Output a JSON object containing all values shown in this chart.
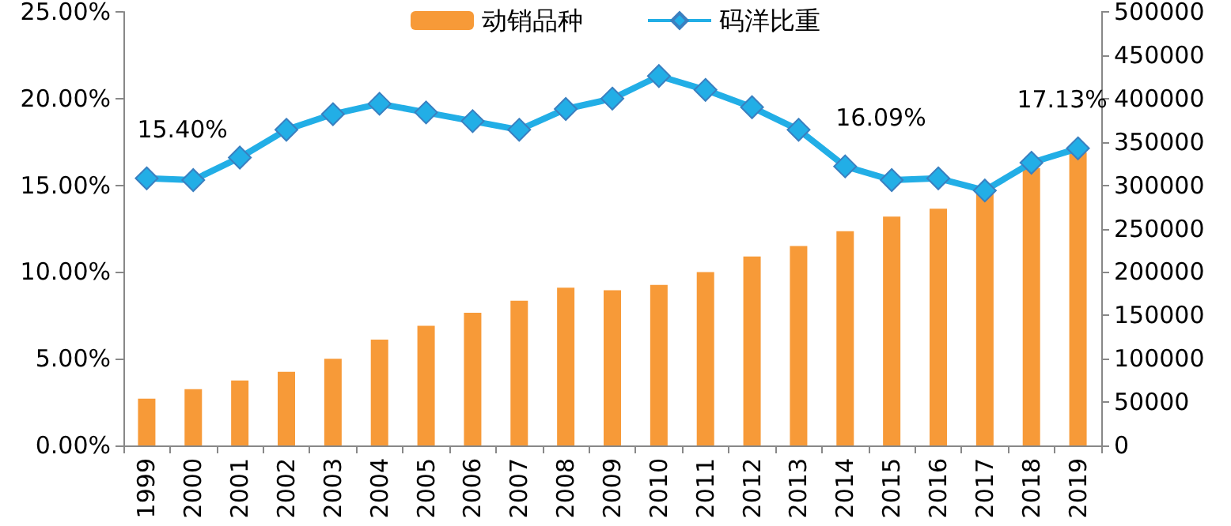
{
  "chart_data": {
    "type": "bar",
    "categories": [
      "1999",
      "2000",
      "2001",
      "2002",
      "2003",
      "2004",
      "2005",
      "2006",
      "2007",
      "2008",
      "2009",
      "2010",
      "2011",
      "2012",
      "2013",
      "2014",
      "2015",
      "2016",
      "2017",
      "2018",
      "2019"
    ],
    "series": [
      {
        "name": "动销品种",
        "axis": "y2",
        "color": "#f79a38",
        "values": [
          54000,
          65000,
          75000,
          85000,
          100000,
          122000,
          138000,
          153000,
          167000,
          182000,
          179000,
          185000,
          200000,
          218000,
          230000,
          247000,
          264000,
          273000,
          290000,
          320000,
          338000
        ]
      },
      {
        "name": "码洋比重",
        "type": "line",
        "axis": "y",
        "color": "#22aee6",
        "marker": "diamond",
        "values": [
          15.4,
          15.3,
          16.6,
          18.2,
          19.1,
          19.7,
          19.2,
          18.7,
          18.2,
          19.4,
          20.0,
          21.3,
          20.5,
          19.5,
          18.2,
          16.09,
          15.3,
          15.4,
          14.7,
          16.3,
          17.13
        ],
        "value_labels": [
          "15.40%",
          null,
          null,
          null,
          null,
          null,
          null,
          null,
          null,
          null,
          null,
          null,
          null,
          null,
          null,
          "16.09%",
          null,
          null,
          null,
          null,
          "17.13%"
        ]
      }
    ],
    "ylim": [
      0,
      25
    ],
    "yticks": [
      {
        "value": 0,
        "label": "0.00%"
      },
      {
        "value": 5,
        "label": "5.00%"
      },
      {
        "value": 10,
        "label": "10.00%"
      },
      {
        "value": 15,
        "label": "15.00%"
      },
      {
        "value": 20,
        "label": "20.00%"
      },
      {
        "value": 25,
        "label": "25.00%"
      }
    ],
    "y2lim": [
      0,
      500000
    ],
    "y2ticks": [
      0,
      50000,
      100000,
      150000,
      200000,
      250000,
      300000,
      350000,
      400000,
      450000,
      500000
    ],
    "legend": "top",
    "grid": false
  }
}
